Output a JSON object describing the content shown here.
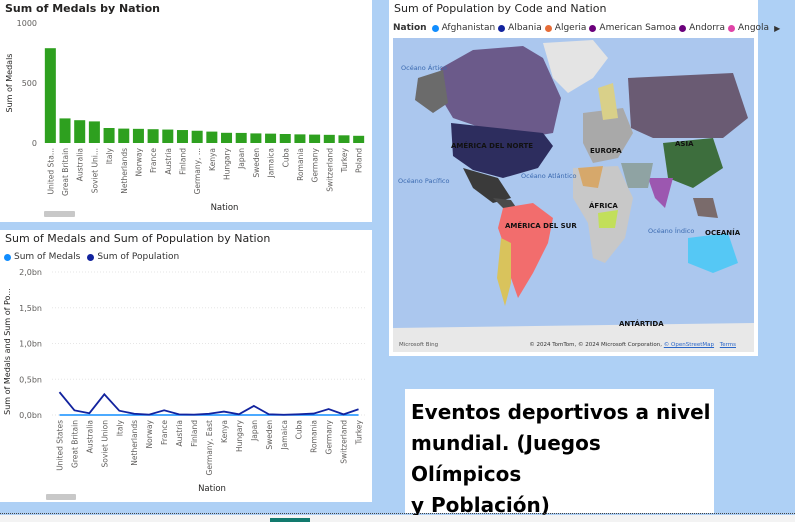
{
  "bar_chart": {
    "title": "Sum of Medals by Nation",
    "xlabel": "Nation",
    "ylabel": "Sum of Medals",
    "color": "#2ea01f",
    "chart_data": {
      "type": "bar",
      "title": "Sum of Medals by Nation",
      "xlabel": "Nation",
      "ylabel": "Sum of Medals",
      "ylim": [
        0,
        1000
      ],
      "yticks": [
        "1000",
        "500",
        "0"
      ],
      "categories": [
        "United Sta...",
        "Great Britain",
        "Australia",
        "Soviet Uni...",
        "Italy",
        "Netherlands",
        "Norway",
        "France",
        "Austria",
        "Finland",
        "Germany, ...",
        "Kenya",
        "Hungary",
        "Japan",
        "Sweden",
        "Jamaica",
        "Cuba",
        "Romania",
        "Germany",
        "Switzerland",
        "Turkey",
        "Poland"
      ],
      "values": [
        790,
        205,
        190,
        180,
        125,
        120,
        118,
        115,
        112,
        108,
        102,
        95,
        85,
        84,
        80,
        78,
        75,
        72,
        70,
        68,
        64,
        60
      ]
    }
  },
  "line_chart": {
    "title": "Sum of Medals and Sum of Population by Nation",
    "xlabel": "Nation",
    "ylabel": "Sum of Medals and Sum of Po...",
    "legend": [
      {
        "label": "Sum of Medals",
        "color": "#118dff"
      },
      {
        "label": "Sum of Population",
        "color": "#12239e"
      }
    ],
    "chart_data": {
      "type": "line",
      "title": "Sum of Medals and Sum of Population by Nation",
      "xlabel": "Nation",
      "ylabel": "Sum of Medals and Sum of Po...",
      "ylim": [
        0,
        2.0
      ],
      "yticks": [
        "2,0bn",
        "1,5bn",
        "1,0bn",
        "0,5bn",
        "0,0bn"
      ],
      "categories": [
        "United States",
        "Great Britain",
        "Australia",
        "Soviet Union",
        "Italy",
        "Netherlands",
        "Norway",
        "France",
        "Austria",
        "Finland",
        "Germany, East",
        "Kenya",
        "Hungary",
        "Japan",
        "Sweden",
        "Jamaica",
        "Cuba",
        "Romania",
        "Germany",
        "Switzerland",
        "Turkey"
      ],
      "series": [
        {
          "name": "Sum of Medals",
          "values": [
            0.0008,
            0.0002,
            0.0002,
            0.0002,
            0.0001,
            0.0001,
            0.0001,
            0.0001,
            0.0001,
            0.0001,
            0.0001,
            0.0001,
            0.0001,
            0.0001,
            0.0001,
            0.0001,
            0.0001,
            0.0001,
            0.0001,
            0.0001,
            0.0001
          ]
        },
        {
          "name": "Sum of Population",
          "values": [
            0.32,
            0.065,
            0.025,
            0.29,
            0.06,
            0.017,
            0.005,
            0.066,
            0.009,
            0.0055,
            0.017,
            0.048,
            0.01,
            0.127,
            0.01,
            0.003,
            0.011,
            0.02,
            0.083,
            0.0085,
            0.08
          ]
        }
      ]
    }
  },
  "map": {
    "title": "Sum of Population by Code and Nation",
    "legend_title": "Nation",
    "legend": [
      {
        "label": "Afghanistan",
        "color": "#118dff"
      },
      {
        "label": "Albania",
        "color": "#12239e"
      },
      {
        "label": "Algeria",
        "color": "#e66c37"
      },
      {
        "label": "American Samoa",
        "color": "#6b007b"
      },
      {
        "label": "Andorra",
        "color": "#6b007b"
      },
      {
        "label": "Angola",
        "color": "#e044a7"
      }
    ],
    "labels": {
      "oceano_artico": "Océano Ártico",
      "oceano_pacifico": "Océano Pacífico",
      "oceano_atlantico": "Océano Atlántico",
      "oceano_indico": "Océano Índico",
      "america_norte": "AMÉRICA DEL NORTE",
      "america_sur": "AMÉRICA DEL SUR",
      "europa": "EUROPA",
      "asia": "ASIA",
      "africa": "ÁFRICA",
      "oceania": "OCEANÍA",
      "antartida": "ANTÁRTIDA"
    },
    "bing": "Microsoft Bing",
    "attribution": "© 2024 TomTom, © 2024 Microsoft Corporation,",
    "osm_link": "© OpenStreetMap",
    "terms": "Terms"
  },
  "text_box": {
    "line1": "Eventos deportivos a nivel",
    "line2": "mundial. (Juegos Olímpicos",
    "line3": "y Población)"
  }
}
